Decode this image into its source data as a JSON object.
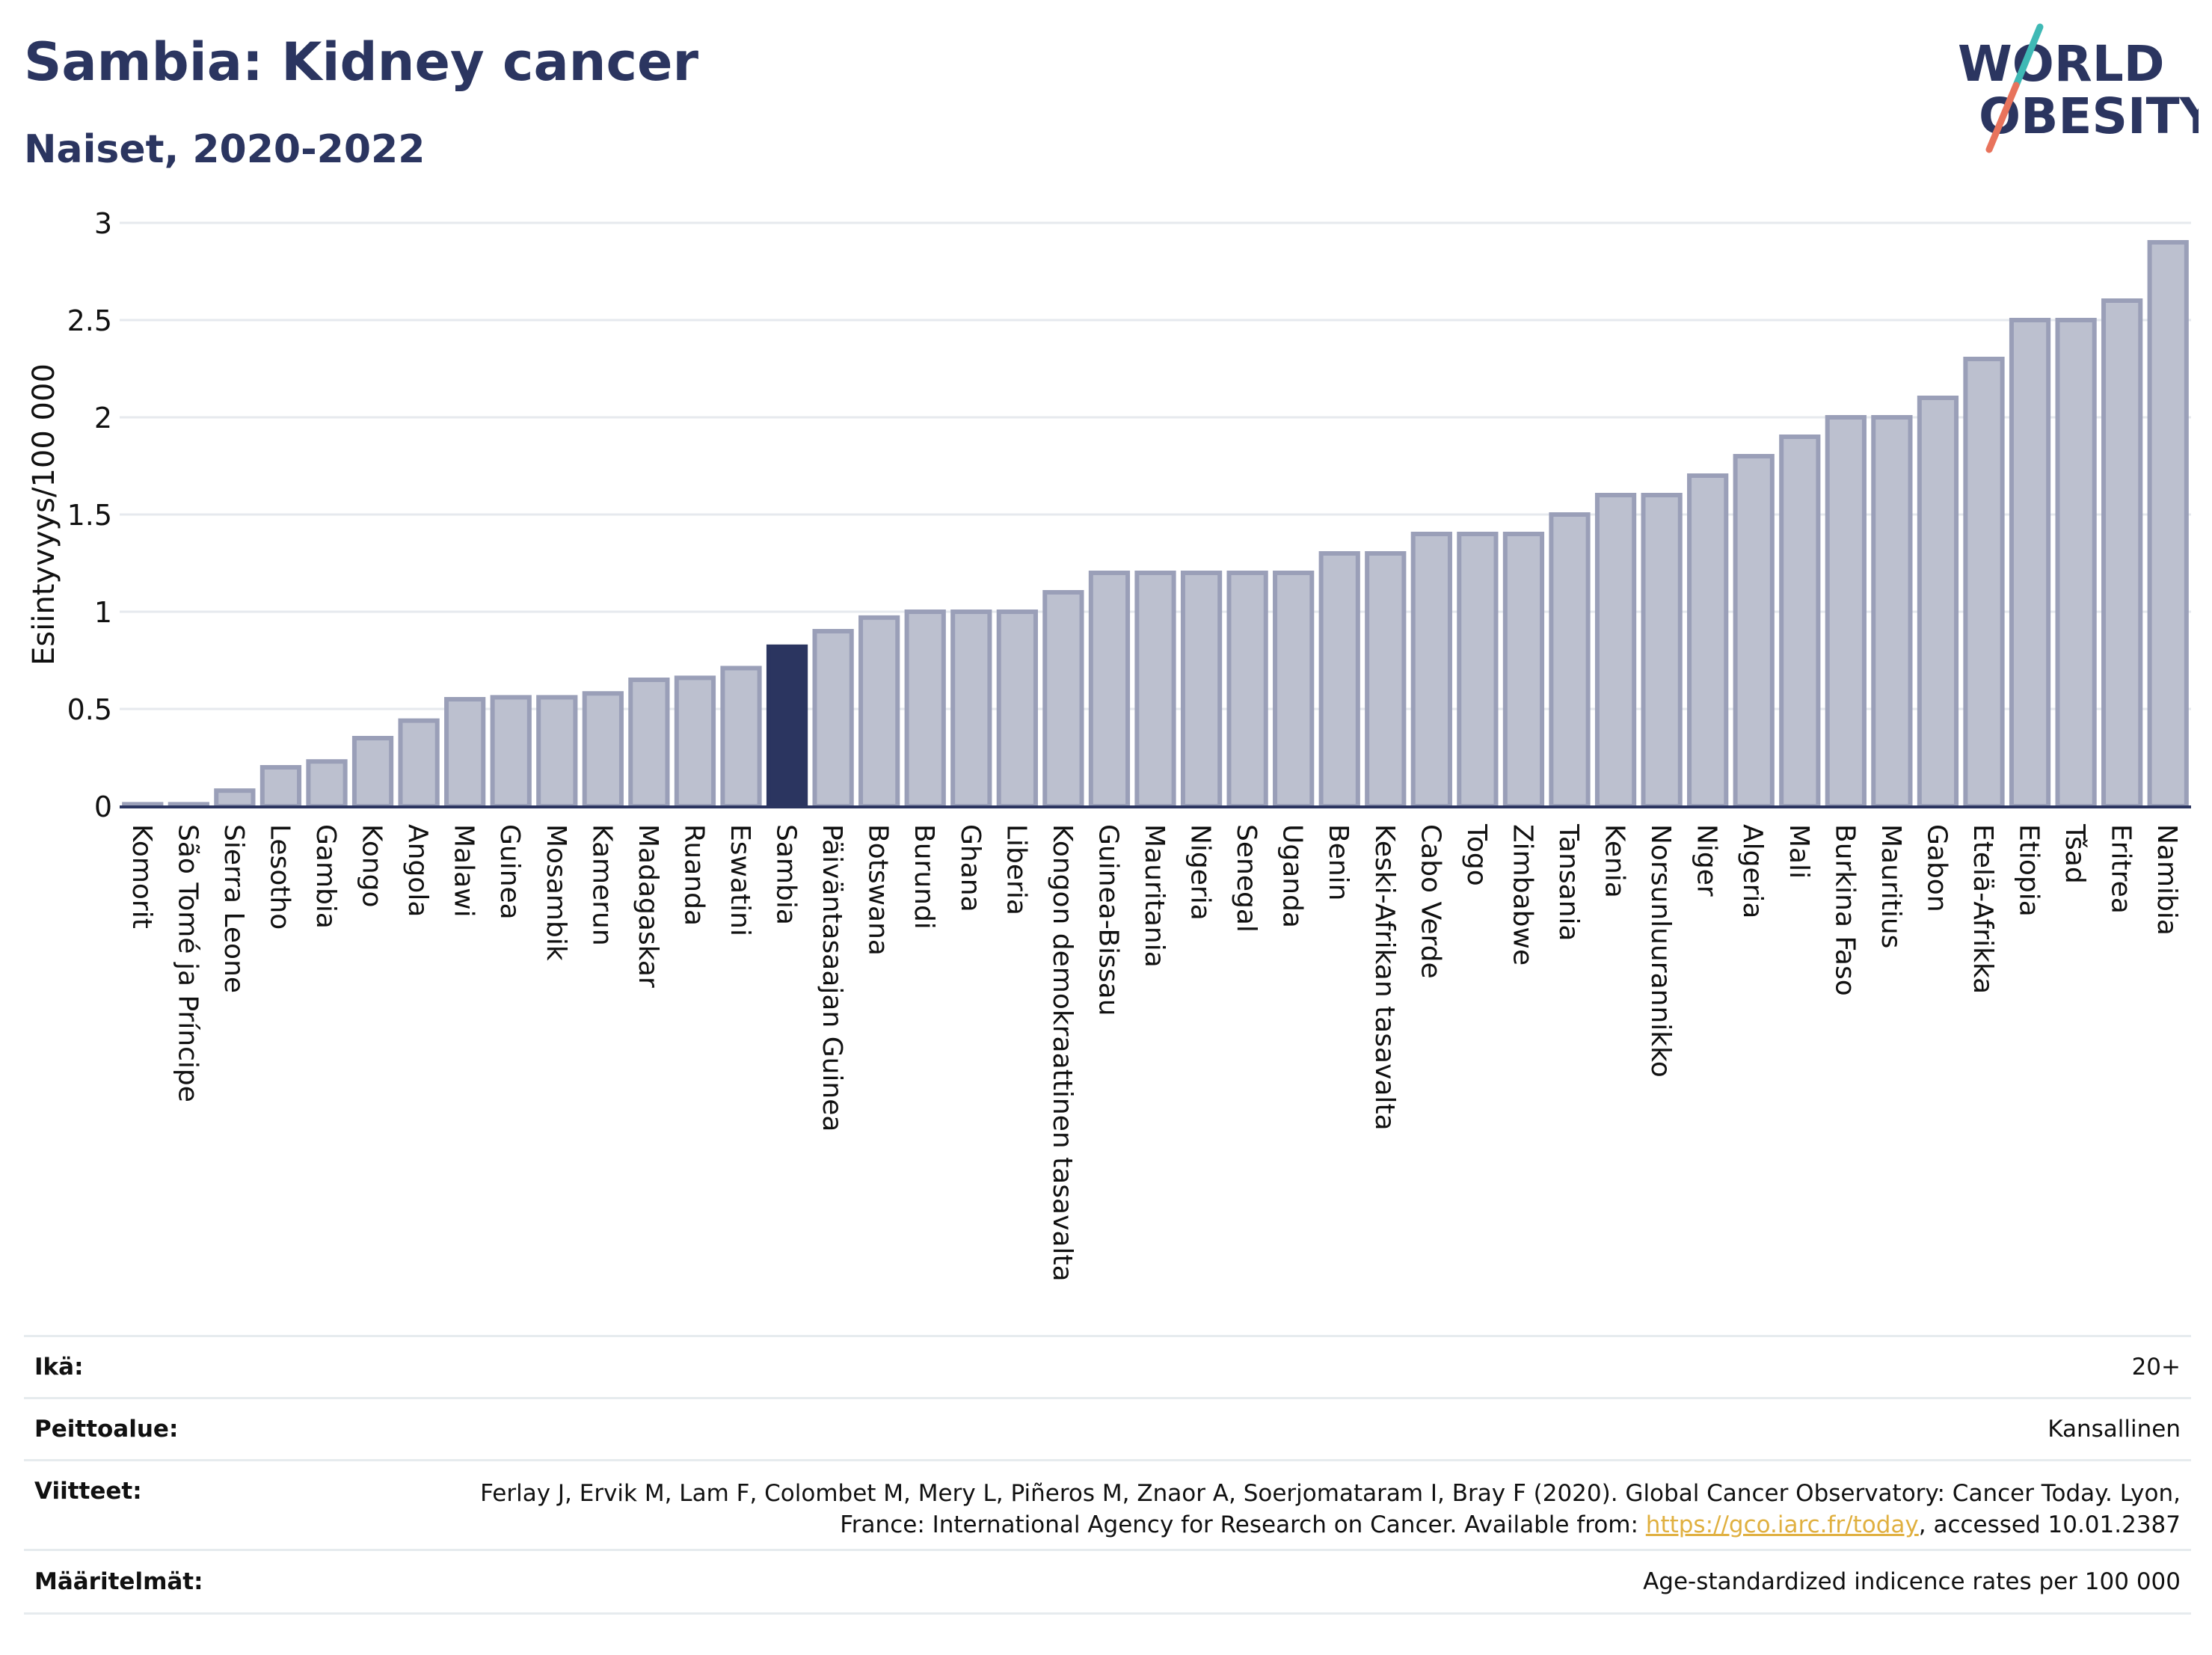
{
  "header": {
    "title": "Sambia: Kidney cancer",
    "subtitle": "Naiset, 2020-2022"
  },
  "logo": {
    "line1": "WORLD",
    "line2": "OBESITY",
    "text_color": "#2b3560",
    "slash_teal": "#3fb9b5",
    "slash_coral": "#e8735c"
  },
  "colors": {
    "bar": "#bcc0cf",
    "bar_border": "#9a9fb8",
    "highlight": "#2b3560",
    "grid": "#e6e9ee",
    "axis": "#2b3560"
  },
  "chart_data": {
    "type": "bar",
    "title": "Sambia: Kidney cancer",
    "subtitle": "Naiset, 2020-2022",
    "xlabel": "",
    "ylabel": "Esiintyvyys/100 000",
    "ylim": [
      0,
      3
    ],
    "yticks": [
      0,
      0.5,
      1,
      1.5,
      2,
      2.5,
      3
    ],
    "ytick_labels": [
      "0",
      "0.5",
      "1",
      "1.5",
      "2",
      "2.5",
      "3"
    ],
    "grid": true,
    "highlight": "Sambia",
    "categories": [
      "Komorit",
      "São Tomé ja Príncipe",
      "Sierra Leone",
      "Lesotho",
      "Gambia",
      "Kongo",
      "Angola",
      "Malawi",
      "Guinea",
      "Mosambik",
      "Kamerun",
      "Madagaskar",
      "Ruanda",
      "Eswatini",
      "Sambia",
      "Päiväntasaajan Guinea",
      "Botswana",
      "Burundi",
      "Ghana",
      "Liberia",
      "Kongon demokraattinen tasavalta",
      "Guinea-Bissau",
      "Mauritania",
      "Nigeria",
      "Senegal",
      "Uganda",
      "Benin",
      "Keski-Afrikan tasavalta",
      "Cabo Verde",
      "Togo",
      "Zimbabwe",
      "Tansania",
      "Kenia",
      "Norsunluurannikko",
      "Niger",
      "Algeria",
      "Mali",
      "Burkina Faso",
      "Mauritius",
      "Gabon",
      "Etelä-Afrikka",
      "Etiopia",
      "Tšad",
      "Eritrea",
      "Namibia"
    ],
    "values": [
      0.01,
      0.01,
      0.08,
      0.2,
      0.23,
      0.35,
      0.44,
      0.55,
      0.56,
      0.56,
      0.58,
      0.65,
      0.66,
      0.71,
      0.82,
      0.9,
      0.97,
      1.0,
      1.0,
      1.0,
      1.1,
      1.2,
      1.2,
      1.2,
      1.2,
      1.2,
      1.3,
      1.3,
      1.4,
      1.4,
      1.4,
      1.5,
      1.6,
      1.6,
      1.7,
      1.8,
      1.9,
      2.0,
      2.0,
      2.1,
      2.3,
      2.5,
      2.5,
      2.6,
      2.9
    ]
  },
  "footer": {
    "rows": [
      {
        "label": "Ikä:",
        "value": "20+"
      },
      {
        "label": "Peittoalue:",
        "value": "Kansallinen"
      },
      {
        "label": "Viitteet:",
        "value_before": "Ferlay J, Ervik M, Lam F, Colombet M, Mery L, Piñeros M, Znaor A, Soerjomataram I, Bray F (2020). Global Cancer Observatory: Cancer Today. Lyon, France: International Agency for Research on Cancer. Available from: ",
        "link": "https://gco.iarc.fr/today",
        "value_after": ", accessed 10.01.2387"
      },
      {
        "label": "Määritelmät:",
        "value": "Age-standardized indicence rates per 100 000"
      }
    ]
  }
}
